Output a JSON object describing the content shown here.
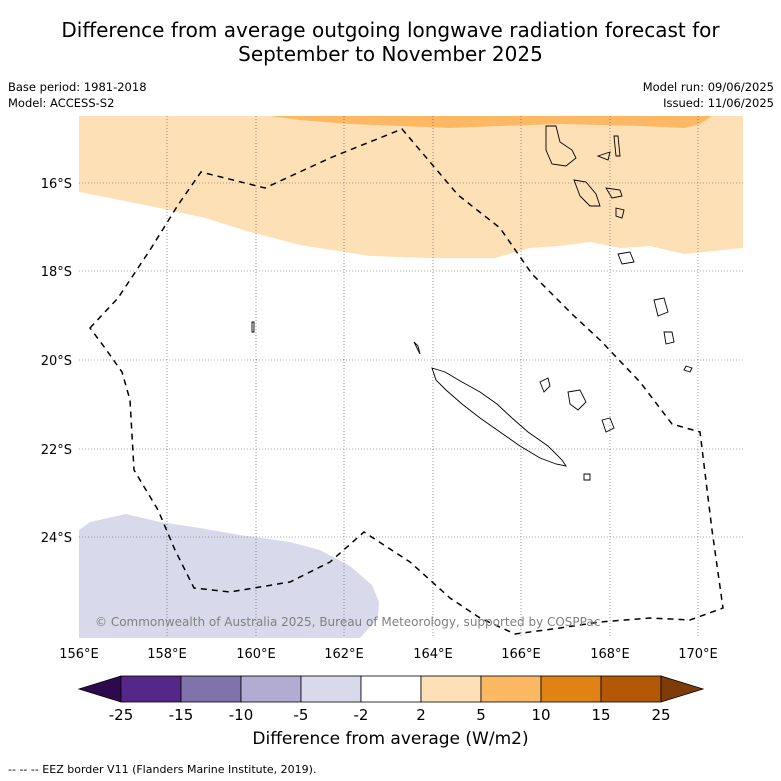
{
  "title_line1": "Difference from average outgoing longwave radiation forecast for",
  "title_line2": "September to November 2025",
  "base_period": "Base period: 1981-2018",
  "model": "Model: ACCESS-S2",
  "model_run": "Model run: 09/06/2025",
  "issued": "Issued: 11/06/2025",
  "copyright": "© Commonwealth of Australia 2025, Bureau of Meteorology, supported by COSPPac",
  "lat_labels": [
    "16°S",
    "18°S",
    "20°S",
    "22°S",
    "24°S"
  ],
  "lon_labels": [
    "156°E",
    "158°E",
    "160°E",
    "162°E",
    "164°E",
    "166°E",
    "168°E",
    "170°E"
  ],
  "colorbar": {
    "label": "Difference from average (W/m2)",
    "ticks": [
      "-25",
      "-15",
      "-10",
      "-5",
      "-2",
      "2",
      "5",
      "10",
      "15",
      "25"
    ],
    "colors": [
      "#2d0a4e",
      "#542788",
      "#8073ac",
      "#b2abd2",
      "#d8daeb",
      "#ffffff",
      "#fee0b6",
      "#fdb863",
      "#e08214",
      "#b35806",
      "#7f3b08"
    ]
  },
  "footnote": "--  --  -- EEZ border V11 (Flanders Marine Institute, 2019)."
}
